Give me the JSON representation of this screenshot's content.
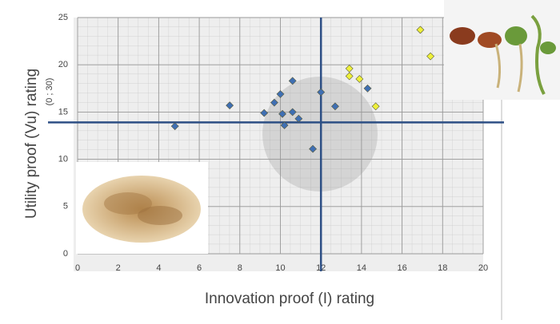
{
  "chart_data": {
    "type": "scatter",
    "ylabel": "Utility proof (Vu) rating",
    "ylabel_note": "(0 ; 30)",
    "xlabel": "Innovation proof (I) rating",
    "xlim": [
      0,
      20
    ],
    "ylim": [
      0,
      25
    ],
    "xticks": [
      0,
      2,
      4,
      6,
      8,
      10,
      12,
      14,
      16,
      18,
      20
    ],
    "yticks": [
      0,
      5,
      10,
      15,
      20,
      25
    ],
    "grid": true,
    "reference_x": 12,
    "reference_y": 13.9,
    "series": [
      {
        "color": "#3f6fb3",
        "x": [
          4.8,
          7.5,
          9.2,
          9.7,
          10,
          10.1,
          10.2,
          10.6,
          10.6,
          10.9,
          11.6,
          12,
          12.7,
          14.3
        ],
        "values": [
          13.5,
          15.7,
          14.9,
          16,
          16.9,
          14.8,
          13.6,
          18.3,
          15,
          14.3,
          11.1,
          17.1,
          15.6,
          17.5
        ]
      },
      {
        "color": "#eef03a",
        "x": [
          13.4,
          13.4,
          13.9,
          14.7,
          16.9,
          17.4
        ],
        "values": [
          19.6,
          18.8,
          18.5,
          15.6,
          23.7,
          20.9
        ]
      }
    ]
  }
}
